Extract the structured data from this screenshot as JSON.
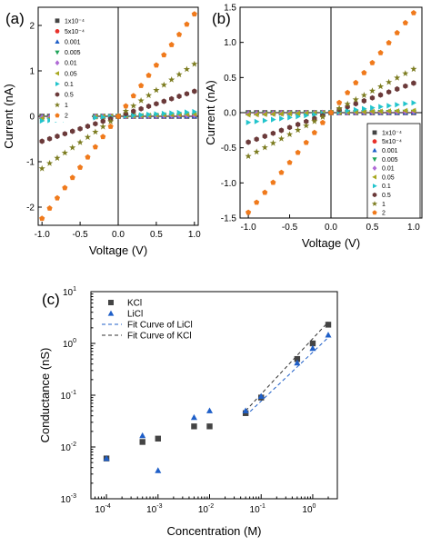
{
  "chart_data": [
    {
      "panel": "(a)",
      "type": "scatter",
      "xlabel": "Voltage (V)",
      "ylabel": "Current (nA)",
      "xlim": [
        -1.05,
        1.05
      ],
      "ylim": [
        -2.4,
        2.4
      ],
      "xticks": [
        -1.0,
        -0.5,
        0.0,
        0.5,
        1.0
      ],
      "xtick_labels": [
        "-1.0",
        "-0.5",
        "0.0",
        "0.5",
        "1.0"
      ],
      "yticks": [
        -2,
        -1,
        0,
        1,
        2
      ],
      "ytick_labels": [
        "-2",
        "-1",
        "0",
        "1",
        "2"
      ],
      "legend_position": "upper-left",
      "x": [
        -1.0,
        -0.9,
        -0.8,
        -0.7,
        -0.6,
        -0.5,
        -0.4,
        -0.3,
        -0.2,
        -0.1,
        0.0,
        0.1,
        0.2,
        0.3,
        0.4,
        0.5,
        0.6,
        0.7,
        0.8,
        0.9,
        1.0
      ],
      "series": [
        {
          "name": "1x10⁻⁴",
          "color": "#444444",
          "marker": "square",
          "slope": 0.0006
        },
        {
          "name": "5x10⁻⁴",
          "color": "#e8312b",
          "marker": "circle",
          "slope": 0.006
        },
        {
          "name": "0.001",
          "color": "#1f5fc8",
          "marker": "triangle-up",
          "slope": 0.003
        },
        {
          "name": "0.005",
          "color": "#20a55a",
          "marker": "triangle-down",
          "slope": 0.02
        },
        {
          "name": "0.01",
          "color": "#b06ad6",
          "marker": "diamond",
          "slope": 0.025
        },
        {
          "name": "0.05",
          "color": "#a8a820",
          "marker": "triangle-left",
          "slope": 0.05
        },
        {
          "name": "0.1",
          "color": "#22c4cc",
          "marker": "triangle-right",
          "slope": 0.1
        },
        {
          "name": "0.5",
          "color": "#6b3a3a",
          "marker": "hexagon",
          "slope": 0.55
        },
        {
          "name": "1",
          "color": "#7c7c20",
          "marker": "star",
          "slope": 1.15
        },
        {
          "name": "2",
          "color": "#f07a1c",
          "marker": "pentagon",
          "slope": 2.25
        }
      ]
    },
    {
      "panel": "(b)",
      "type": "scatter",
      "xlabel": "Voltage (V)",
      "ylabel": "Current (nA)",
      "xlim": [
        -1.1,
        1.1
      ],
      "ylim": [
        -1.5,
        1.5
      ],
      "xticks": [
        -1.0,
        -0.5,
        0.0,
        0.5,
        1.0
      ],
      "xtick_labels": [
        "-1.0",
        "-0.5",
        "0.0",
        "0.5",
        "1.0"
      ],
      "yticks": [
        -1.5,
        -1.0,
        -0.5,
        0.0,
        0.5,
        1.0,
        1.5
      ],
      "ytick_labels": [
        "-1.5",
        "-1.0",
        "-0.5",
        "0.0",
        "0.5",
        "1.0",
        "1.5"
      ],
      "legend_position": "lower-right",
      "x": [
        -1.0,
        -0.9,
        -0.8,
        -0.7,
        -0.6,
        -0.5,
        -0.4,
        -0.3,
        -0.2,
        -0.1,
        0.0,
        0.1,
        0.2,
        0.3,
        0.4,
        0.5,
        0.6,
        0.7,
        0.8,
        0.9,
        1.0
      ],
      "series": [
        {
          "name": "1x10⁻⁴",
          "color": "#444444",
          "marker": "square",
          "slope": 0.0006
        },
        {
          "name": "5x10⁻⁴",
          "color": "#e8312b",
          "marker": "circle",
          "slope": 0.004
        },
        {
          "name": "0.001",
          "color": "#1f5fc8",
          "marker": "triangle-up",
          "slope": 0.003
        },
        {
          "name": "0.005",
          "color": "#20a55a",
          "marker": "triangle-down",
          "slope": 0.012
        },
        {
          "name": "0.01",
          "color": "#b06ad6",
          "marker": "diamond",
          "slope": 0.016
        },
        {
          "name": "0.05",
          "color": "#a8a820",
          "marker": "triangle-left",
          "slope": 0.03
        },
        {
          "name": "0.1",
          "color": "#22c4cc",
          "marker": "triangle-right",
          "slope": 0.14
        },
        {
          "name": "0.5",
          "color": "#6b3a3a",
          "marker": "hexagon",
          "slope": 0.42
        },
        {
          "name": "1",
          "color": "#7c7c20",
          "marker": "star",
          "slope": 0.62
        },
        {
          "name": "2",
          "color": "#f07a1c",
          "marker": "pentagon",
          "slope": 1.42
        }
      ]
    },
    {
      "panel": "(c)",
      "type": "scatter",
      "xlabel": "Concentration (M)",
      "ylabel": "Conductance (nS)",
      "xscale": "log",
      "yscale": "log",
      "xlim": [
        5e-05,
        3
      ],
      "ylim": [
        0.001,
        10
      ],
      "legend_position": "upper-left",
      "series": [
        {
          "name": "KCl",
          "color": "#444444",
          "marker": "square",
          "x": [
            0.0001,
            0.0005,
            0.001,
            0.005,
            0.01,
            0.05,
            0.1,
            0.5,
            1,
            2
          ],
          "y": [
            0.006,
            0.0125,
            0.0145,
            0.025,
            0.025,
            0.045,
            0.09,
            0.5,
            1.0,
            2.3
          ]
        },
        {
          "name": "LiCl",
          "color": "#1f5fc8",
          "marker": "triangle-up",
          "x": [
            0.0001,
            0.0005,
            0.001,
            0.005,
            0.01,
            0.05,
            0.1,
            0.5,
            1,
            2
          ],
          "y": [
            0.006,
            0.0165,
            0.0035,
            0.037,
            0.05,
            0.05,
            0.095,
            0.42,
            0.8,
            1.45
          ]
        },
        {
          "name": "Fit Curve of LiCl",
          "color": "#1f5fc8",
          "line": "dashed",
          "x": [
            0.05,
            2
          ],
          "y": [
            0.04,
            1.3
          ]
        },
        {
          "name": "Fit Curve of KCl",
          "color": "#333333",
          "line": "dashed",
          "x": [
            0.05,
            2
          ],
          "y": [
            0.05,
            2.6
          ]
        }
      ]
    }
  ]
}
